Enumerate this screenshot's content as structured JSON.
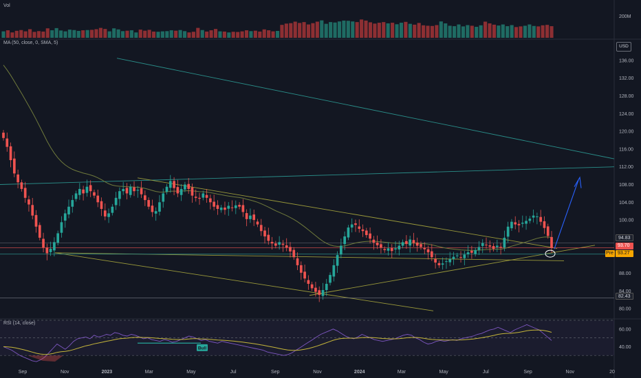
{
  "panes": {
    "volume_label": "Vol",
    "price_label": "MA (50, close, 0, SMA, 5)",
    "rsi_label": "RSI (14, close)"
  },
  "currency": "USD",
  "badges": {
    "close": "93.70",
    "pre_tag": "Pre",
    "pre_value": "93.27",
    "level_upper": "94.83",
    "level_lower": "82.43"
  },
  "signal_label": "Bull",
  "colors": {
    "background": "#131722",
    "up": "#26a69a",
    "down": "#ef5350",
    "volume_up": "#1f6b63",
    "volume_down": "#8d2f33",
    "ma": "#6f7a3c",
    "trendline_yellow": "#9b9a3a",
    "trendline_teal": "#2a8f8a",
    "projection_arrow": "#2962ff",
    "pre_badge": "#f7a600",
    "rsi_line": "#7e57c2",
    "rsi_ma": "#c6b63a"
  },
  "chart_data": [
    {
      "type": "candlestick",
      "pane": "price",
      "axis": {
        "ymin": 78,
        "ymax": 138,
        "ticks": [
          80,
          84,
          88,
          92,
          96,
          100,
          104,
          108,
          112,
          116,
          120,
          124,
          128,
          132,
          136
        ]
      },
      "x_ticks": [
        "Sep",
        "Nov",
        "2023",
        "Mar",
        "May",
        "Jul",
        "Sep",
        "Nov",
        "2024",
        "Mar",
        "May",
        "Jul",
        "Sep",
        "Nov",
        "20"
      ],
      "closes": [
        118.5,
        116.5,
        113.5,
        110.5,
        108.5,
        107.0,
        105.0,
        103.5,
        101.0,
        98.5,
        96.0,
        93.8,
        92.5,
        93.5,
        95.0,
        97.0,
        99.5,
        101.5,
        103.0,
        104.5,
        106.0,
        107.0,
        106.0,
        107.5,
        106.5,
        105.5,
        104.0,
        102.5,
        100.8,
        101.5,
        103.0,
        105.0,
        106.5,
        107.0,
        106.0,
        107.5,
        106.5,
        106.8,
        105.8,
        104.5,
        103.0,
        101.8,
        102.0,
        104.0,
        106.0,
        107.5,
        108.8,
        107.2,
        106.0,
        107.0,
        108.0,
        107.0,
        105.5,
        105.0,
        104.8,
        106.0,
        105.0,
        104.0,
        103.0,
        102.5,
        102.8,
        102.3,
        103.2,
        102.8,
        103.3,
        103.0,
        101.8,
        100.2,
        101.0,
        100.0,
        99.0,
        97.5,
        96.3,
        95.3,
        94.7,
        94.2,
        95.0,
        94.4,
        93.8,
        92.9,
        91.6,
        89.8,
        88.1,
        86.8,
        85.6,
        84.6,
        83.8,
        83.1,
        84.2,
        85.6,
        87.6,
        89.8,
        92.1,
        94.2,
        96.3,
        98.3,
        99.0,
        98.9,
        98.0,
        97.5,
        96.6,
        95.8,
        94.9,
        94.3,
        93.8,
        93.2,
        93.6,
        93.0,
        93.6,
        94.2,
        95.0,
        94.6,
        95.6,
        94.8,
        94.2,
        93.9,
        93.4,
        92.7,
        91.6,
        90.4,
        89.8,
        90.2,
        90.7,
        91.2,
        91.7,
        92.0,
        91.5,
        92.2,
        92.7,
        92.6,
        93.2,
        93.9,
        94.8,
        94.4,
        94.0,
        93.5,
        94.2,
        93.8,
        96.0,
        98.5,
        99.6,
        99.0,
        98.8,
        99.4,
        99.8,
        100.3,
        101.0,
        100.8,
        99.6,
        98.2,
        96.4,
        93.7
      ],
      "moving_average": {
        "period": 50,
        "start": 136.0
      },
      "annotations": [
        "ascending support",
        "descending resistance",
        "long-term downtrend",
        "horizontal resistance",
        "projection arrow",
        "circle at last candle"
      ]
    },
    {
      "type": "bar",
      "pane": "volume",
      "axis": {
        "ymax": 300,
        "ticks_label": "200M",
        "tick_value": 200
      },
      "values": [
        60,
        70,
        50,
        65,
        72,
        60,
        80,
        55,
        62,
        58,
        88,
        70,
        90,
        68,
        60,
        76,
        72,
        64,
        70,
        72,
        74,
        80,
        92,
        82,
        60,
        88,
        78,
        62,
        66,
        70,
        50,
        76,
        66,
        74,
        58,
        56,
        60,
        62,
        70,
        66,
        72,
        62,
        50,
        56,
        92,
        72,
        58,
        70,
        82,
        60,
        58,
        50,
        56,
        54,
        60,
        70,
        62,
        66,
        58,
        78,
        70,
        60,
        64,
        120,
        132,
        136,
        150,
        138,
        146,
        124,
        136,
        150,
        162,
        130,
        146,
        142,
        152,
        160,
        158,
        152,
        146,
        170,
        160,
        144,
        132,
        140,
        146,
        134,
        140,
        126,
        140,
        148,
        130,
        122,
        138,
        116,
        112,
        110,
        118,
        152,
        134,
        112,
        108,
        124,
        106,
        118,
        112,
        102,
        116,
        150,
        134,
        122,
        114,
        124,
        108,
        118,
        100,
        106,
        112,
        124,
        110,
        106,
        116,
        120,
        108
      ]
    },
    {
      "type": "line",
      "pane": "rsi",
      "axis": {
        "ymin": 20,
        "ymax": 70,
        "ticks": [
          40,
          60
        ],
        "bands": [
          30,
          70
        ]
      },
      "values": [
        40,
        38,
        36,
        33,
        30,
        28,
        26,
        24,
        23,
        25,
        28,
        33,
        38,
        43,
        40,
        37,
        41,
        46,
        49,
        50,
        51,
        49,
        53,
        51,
        52,
        54,
        53,
        56,
        55,
        53,
        52,
        54,
        53,
        51,
        49,
        50,
        48,
        47,
        46,
        48,
        47,
        45,
        46,
        48,
        50,
        52,
        51,
        49,
        47,
        48,
        46,
        45,
        44,
        46,
        45,
        44,
        43,
        42,
        41,
        40,
        39,
        38,
        37,
        36,
        34,
        33,
        32,
        31,
        30,
        31,
        33,
        36,
        39,
        42,
        45,
        48,
        51,
        54,
        56,
        58,
        60,
        58,
        55,
        52,
        50,
        49,
        51,
        54,
        52,
        50,
        48,
        47,
        46,
        47,
        48,
        49,
        51,
        53,
        54,
        53,
        50,
        48,
        45,
        43,
        44,
        46,
        47,
        46,
        47,
        48,
        47,
        49,
        50,
        51,
        52,
        54,
        55,
        57,
        59,
        60,
        62,
        60,
        58,
        56,
        59,
        61,
        63,
        65,
        63,
        61,
        59,
        55,
        51,
        47
      ]
    }
  ]
}
